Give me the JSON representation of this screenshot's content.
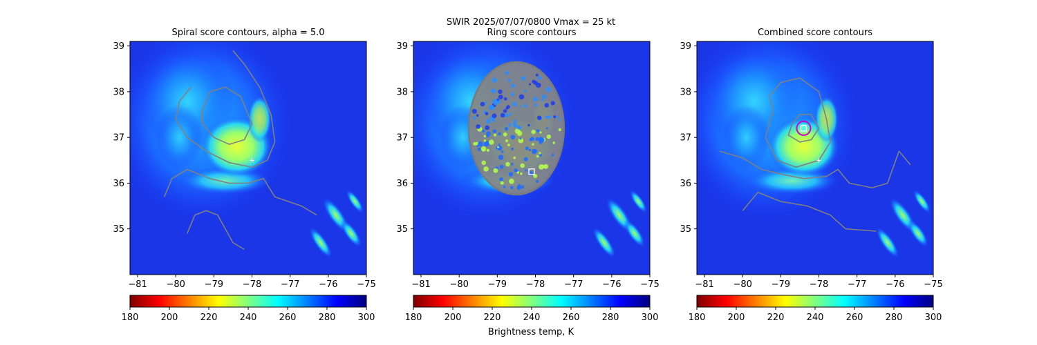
{
  "figure": {
    "suptitle_line1": "SWIR  2025/07/07/0800    Vmax = 25 kt",
    "colorbar_label": "Brightness temp, K"
  },
  "chart_data": {
    "type": "heatmap",
    "xlim": [
      -81.2,
      -75
    ],
    "ylim": [
      34,
      39.1
    ],
    "xticks": [
      -81,
      -80,
      -79,
      -78,
      -77,
      -76,
      -75
    ],
    "xtick_labels": [
      "−81",
      "−80",
      "−79",
      "−78",
      "−77",
      "−76",
      "−75"
    ],
    "yticks": [
      35,
      36,
      37,
      38,
      39
    ],
    "ytick_labels": [
      "35",
      "36",
      "37",
      "38",
      "39"
    ],
    "colorbar": {
      "colormap": "jet_r",
      "range": [
        180,
        300
      ],
      "ticks": [
        180,
        200,
        220,
        240,
        260,
        280,
        300
      ],
      "tick_labels": [
        "180",
        "200",
        "220",
        "240",
        "260",
        "280",
        "300"
      ],
      "stops": [
        "#7f0000",
        "#ff0000",
        "#ff8000",
        "#ffff00",
        "#80ff80",
        "#00ffff",
        "#0080ff",
        "#0000ff",
        "#00007f"
      ]
    },
    "panels": [
      {
        "id": "spiral",
        "title": "Spiral score contours, alpha =  5.0",
        "contour_color": "#808080",
        "center_marker": {
          "lon": -78.0,
          "lat": 36.5,
          "symbol": "+"
        },
        "contours": [
          [
            [
              -79.6,
              38.1
            ],
            [
              -79.9,
              37.8
            ],
            [
              -80.0,
              37.4
            ],
            [
              -79.7,
              37.0
            ],
            [
              -79.2,
              36.7
            ],
            [
              -78.6,
              36.45
            ],
            [
              -78.0,
              36.35
            ],
            [
              -77.6,
              36.5
            ],
            [
              -77.4,
              36.9
            ],
            [
              -77.5,
              37.5
            ],
            [
              -77.8,
              38.1
            ],
            [
              -78.2,
              38.6
            ],
            [
              -78.5,
              38.9
            ]
          ],
          [
            [
              -79.3,
              37.6
            ],
            [
              -79.1,
              38.0
            ],
            [
              -78.7,
              38.1
            ],
            [
              -78.3,
              37.9
            ],
            [
              -78.0,
              37.3
            ],
            [
              -78.2,
              36.95
            ],
            [
              -78.6,
              36.85
            ],
            [
              -79.0,
              37.0
            ],
            [
              -79.3,
              37.3
            ],
            [
              -79.3,
              37.6
            ]
          ],
          [
            [
              -80.3,
              35.7
            ],
            [
              -80.1,
              36.1
            ],
            [
              -79.7,
              36.3
            ],
            [
              -79.1,
              36.1
            ],
            [
              -78.6,
              36.0
            ],
            [
              -78.1,
              36.0
            ],
            [
              -77.7,
              36.1
            ],
            [
              -77.4,
              35.7
            ],
            [
              -76.7,
              35.5
            ],
            [
              -76.3,
              35.3
            ]
          ],
          [
            [
              -79.7,
              34.9
            ],
            [
              -79.5,
              35.3
            ],
            [
              -79.2,
              35.4
            ],
            [
              -78.9,
              35.3
            ],
            [
              -78.7,
              35.0
            ],
            [
              -78.5,
              34.7
            ],
            [
              -78.2,
              34.55
            ]
          ]
        ]
      },
      {
        "id": "ring",
        "title": "Ring score contours",
        "contour_color": "#808080",
        "center_marker": {
          "lon": -78.1,
          "lat": 36.25,
          "symbol": "square"
        },
        "ring_region": {
          "lon": -78.5,
          "lat": 37.2,
          "rx": 1.25,
          "ry": 1.45
        },
        "contours": []
      },
      {
        "id": "combined",
        "title": "Combined score contours",
        "contour_color": "#808080",
        "peak_color": "#cc00cc",
        "center_marker": {
          "lon": -78.4,
          "lat": 37.2,
          "symbol": "square"
        },
        "secondary_marker": {
          "lon": -78.0,
          "lat": 36.5,
          "symbol": "+"
        },
        "contours": [
          [
            [
              -79.2,
              37.6
            ],
            [
              -79.3,
              37.9
            ],
            [
              -79.0,
              38.2
            ],
            [
              -78.5,
              38.3
            ],
            [
              -78.0,
              38.0
            ],
            [
              -77.8,
              37.4
            ],
            [
              -77.7,
              36.9
            ],
            [
              -78.0,
              36.5
            ],
            [
              -78.6,
              36.35
            ],
            [
              -79.1,
              36.5
            ],
            [
              -79.4,
              37.0
            ],
            [
              -79.2,
              37.6
            ]
          ],
          [
            [
              -78.7,
              37.3
            ],
            [
              -78.5,
              37.5
            ],
            [
              -78.2,
              37.5
            ],
            [
              -78.0,
              37.2
            ],
            [
              -78.2,
              36.95
            ],
            [
              -78.5,
              36.9
            ],
            [
              -78.8,
              37.05
            ],
            [
              -78.7,
              37.3
            ]
          ],
          [
            [
              -80.6,
              36.7
            ],
            [
              -80.0,
              36.55
            ],
            [
              -79.5,
              36.3
            ],
            [
              -79.0,
              36.2
            ],
            [
              -78.4,
              36.1
            ],
            [
              -77.8,
              36.15
            ],
            [
              -77.5,
              36.3
            ],
            [
              -77.2,
              36.0
            ],
            [
              -76.6,
              35.9
            ],
            [
              -76.2,
              36.0
            ],
            [
              -75.9,
              36.7
            ],
            [
              -75.6,
              36.4
            ]
          ],
          [
            [
              -80.0,
              35.4
            ],
            [
              -79.6,
              35.8
            ],
            [
              -79.0,
              35.6
            ],
            [
              -78.3,
              35.5
            ],
            [
              -77.7,
              35.3
            ],
            [
              -77.3,
              35.0
            ],
            [
              -76.5,
              34.95
            ]
          ]
        ]
      }
    ]
  }
}
